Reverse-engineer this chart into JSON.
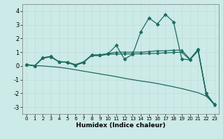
{
  "xlabel": "Humidex (Indice chaleur)",
  "xlim": [
    -0.5,
    23.5
  ],
  "ylim": [
    -3.5,
    4.5
  ],
  "xticks": [
    0,
    1,
    2,
    3,
    4,
    5,
    6,
    7,
    8,
    9,
    10,
    11,
    12,
    13,
    14,
    15,
    16,
    17,
    18,
    19,
    20,
    21,
    22,
    23
  ],
  "yticks": [
    -3,
    -2,
    -1,
    0,
    1,
    2,
    3,
    4
  ],
  "background_color": "#cceae7",
  "line_color": "#1a6b60",
  "series": [
    {
      "x": [
        0,
        1,
        2,
        3,
        4,
        5,
        6,
        7,
        8,
        9,
        10,
        11,
        12,
        13,
        14,
        15,
        16,
        17,
        18,
        19,
        20,
        21,
        22,
        23
      ],
      "y": [
        0.1,
        0.0,
        0.6,
        0.7,
        0.3,
        0.25,
        0.05,
        0.25,
        0.8,
        0.8,
        0.9,
        1.5,
        0.5,
        0.85,
        2.5,
        3.5,
        3.05,
        3.75,
        3.2,
        0.5,
        0.45,
        1.2,
        -2.0,
        -2.8
      ],
      "marker": "D",
      "markersize": 2.5,
      "linewidth": 0.9
    },
    {
      "x": [
        0,
        1,
        2,
        3,
        4,
        5,
        6,
        7,
        8,
        9,
        10,
        11,
        12,
        13,
        14,
        15,
        16,
        17,
        18,
        19,
        20,
        21,
        22,
        23
      ],
      "y": [
        0.1,
        0.0,
        0.6,
        0.65,
        0.3,
        0.28,
        0.1,
        0.3,
        0.8,
        0.8,
        0.9,
        1.0,
        1.0,
        1.0,
        1.0,
        1.05,
        1.1,
        1.1,
        1.15,
        1.15,
        0.5,
        1.2,
        -2.1,
        -2.85
      ],
      "marker": "^",
      "markersize": 2.5,
      "linewidth": 0.9
    },
    {
      "x": [
        0,
        1,
        2,
        3,
        4,
        5,
        6,
        7,
        8,
        9,
        10,
        11,
        12,
        13,
        14,
        15,
        16,
        17,
        18,
        19,
        20,
        21,
        22,
        23
      ],
      "y": [
        0.1,
        0.0,
        0.55,
        0.68,
        0.28,
        0.28,
        0.05,
        0.28,
        0.75,
        0.75,
        0.85,
        0.87,
        0.87,
        0.88,
        0.88,
        0.9,
        0.92,
        0.95,
        0.98,
        1.0,
        0.45,
        1.1,
        -2.05,
        -2.82
      ],
      "marker": "s",
      "markersize": 2.0,
      "linewidth": 0.9
    },
    {
      "x": [
        0,
        1,
        2,
        3,
        4,
        5,
        6,
        7,
        8,
        9,
        10,
        11,
        12,
        13,
        14,
        15,
        16,
        17,
        18,
        19,
        20,
        21,
        22,
        23
      ],
      "y": [
        0.1,
        0.03,
        0.0,
        -0.05,
        -0.1,
        -0.18,
        -0.28,
        -0.38,
        -0.48,
        -0.58,
        -0.68,
        -0.78,
        -0.9,
        -1.0,
        -1.1,
        -1.18,
        -1.28,
        -1.4,
        -1.52,
        -1.65,
        -1.8,
        -1.95,
        -2.2,
        -2.8
      ],
      "marker": null,
      "markersize": 0,
      "linewidth": 0.9
    }
  ]
}
